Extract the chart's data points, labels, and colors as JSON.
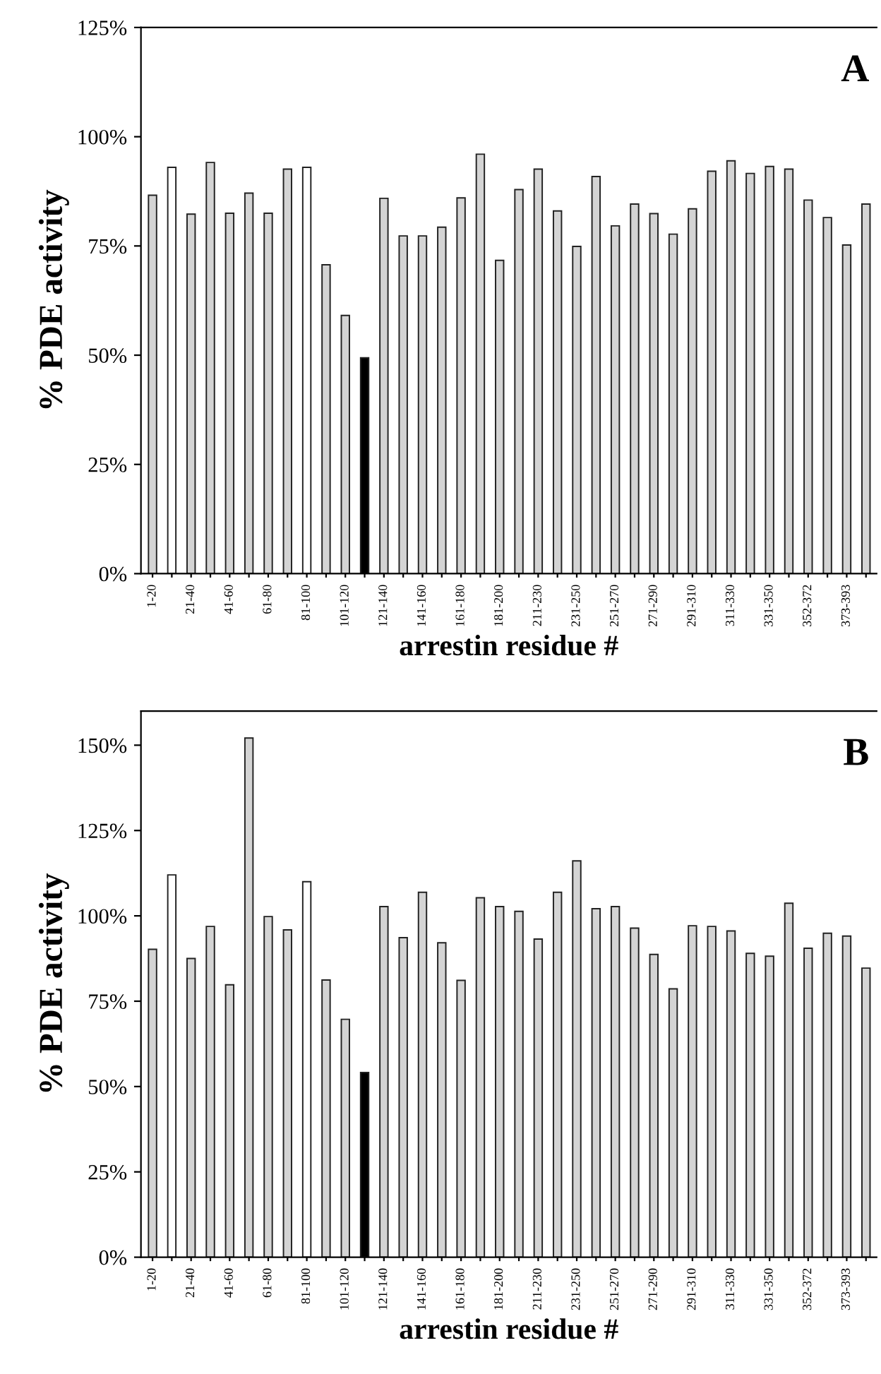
{
  "chart_data": [
    {
      "type": "bar",
      "title": "A",
      "xlabel": "arrestin residue #",
      "ylabel": "% PDE activity",
      "categories": [
        "1-20",
        null,
        "21-40",
        null,
        "41-60",
        null,
        "61-80",
        null,
        "81-100",
        null,
        "101-120",
        null,
        "121-140",
        null,
        "141-160",
        null,
        "161-180",
        null,
        "181-200",
        null,
        "211-230",
        null,
        "231-250",
        null,
        "251-270",
        null,
        "271-290",
        null,
        "291-310",
        null,
        "311-330",
        null,
        "331-350",
        null,
        "352-372",
        null,
        "373-393",
        null
      ],
      "values": [
        86.6,
        93,
        82.3,
        94.1,
        82.5,
        87.1,
        82.5,
        92.6,
        93,
        70.7,
        59.1,
        49.4,
        85.9,
        77.3,
        77.3,
        79.3,
        86.0,
        96.0,
        71.7,
        87.9,
        92.6,
        83.0,
        74.9,
        90.9,
        79.6,
        84.6,
        82.4,
        77.7,
        83.5,
        92.1,
        94.5,
        91.6,
        93.2,
        92.6,
        85.5,
        81.5,
        75.2,
        84.6
      ],
      "colors": [
        "#d4d4d4",
        "#ffffff",
        "#d4d4d4",
        "#d4d4d4",
        "#d4d4d4",
        "#d4d4d4",
        "#d4d4d4",
        "#d4d4d4",
        "#ffffff",
        "#d4d4d4",
        "#d4d4d4",
        "#000000",
        "#d4d4d4",
        "#d4d4d4",
        "#d4d4d4",
        "#d4d4d4",
        "#d4d4d4",
        "#d4d4d4",
        "#d4d4d4",
        "#d4d4d4",
        "#d4d4d4",
        "#d4d4d4",
        "#d4d4d4",
        "#d4d4d4",
        "#d4d4d4",
        "#d4d4d4",
        "#d4d4d4",
        "#d4d4d4",
        "#d4d4d4",
        "#d4d4d4",
        "#d4d4d4",
        "#d4d4d4",
        "#d4d4d4",
        "#d4d4d4",
        "#d4d4d4",
        "#d4d4d4",
        "#d4d4d4",
        "#d4d4d4"
      ],
      "ylim": [
        0,
        125
      ],
      "yticks": [
        {
          "value": 0,
          "label": "0%"
        },
        {
          "value": 25,
          "label": "25%"
        },
        {
          "value": 50,
          "label": "50%"
        },
        {
          "value": 75,
          "label": "75%"
        },
        {
          "value": 100,
          "label": "100%"
        },
        {
          "value": 125,
          "label": "125%"
        }
      ],
      "grid": false,
      "legend": false
    },
    {
      "type": "bar",
      "title": "B",
      "xlabel": "arrestin residue #",
      "ylabel": "% PDE activity",
      "categories": [
        "1-20",
        null,
        "21-40",
        null,
        "41-60",
        null,
        "61-80",
        null,
        "81-100",
        null,
        "101-120",
        null,
        "121-140",
        null,
        "141-160",
        null,
        "161-180",
        null,
        "181-200",
        null,
        "211-230",
        null,
        "231-250",
        null,
        "251-270",
        null,
        "271-290",
        null,
        "291-310",
        null,
        "311-330",
        null,
        "331-350",
        null,
        "352-372",
        null,
        "373-393",
        null
      ],
      "values": [
        90.2,
        112,
        87.5,
        96.9,
        79.8,
        152.1,
        99.8,
        95.9,
        110,
        81.2,
        69.7,
        54.1,
        102.7,
        93.6,
        106.9,
        92.1,
        81.1,
        105.3,
        102.7,
        101.3,
        93.2,
        106.9,
        116.1,
        102.1,
        102.7,
        96.4,
        88.7,
        78.6,
        97.1,
        96.9,
        95.6,
        89.0,
        88.2,
        103.7,
        90.5,
        94.9,
        94.1,
        84.7
      ],
      "colors": [
        "#d4d4d4",
        "#ffffff",
        "#d4d4d4",
        "#d4d4d4",
        "#d4d4d4",
        "#d4d4d4",
        "#d4d4d4",
        "#d4d4d4",
        "#ffffff",
        "#d4d4d4",
        "#d4d4d4",
        "#000000",
        "#d4d4d4",
        "#d4d4d4",
        "#d4d4d4",
        "#d4d4d4",
        "#d4d4d4",
        "#d4d4d4",
        "#d4d4d4",
        "#d4d4d4",
        "#d4d4d4",
        "#d4d4d4",
        "#d4d4d4",
        "#d4d4d4",
        "#d4d4d4",
        "#d4d4d4",
        "#d4d4d4",
        "#d4d4d4",
        "#d4d4d4",
        "#d4d4d4",
        "#d4d4d4",
        "#d4d4d4",
        "#d4d4d4",
        "#d4d4d4",
        "#d4d4d4",
        "#d4d4d4",
        "#d4d4d4",
        "#d4d4d4"
      ],
      "ylim": [
        0,
        160
      ],
      "yticks": [
        {
          "value": 0,
          "label": "0%"
        },
        {
          "value": 25,
          "label": "25%"
        },
        {
          "value": 50,
          "label": "50%"
        },
        {
          "value": 75,
          "label": "75%"
        },
        {
          "value": 100,
          "label": "100%"
        },
        {
          "value": 125,
          "label": "125%"
        },
        {
          "value": 150,
          "label": "150%"
        }
      ],
      "grid": false,
      "legend": false
    }
  ]
}
